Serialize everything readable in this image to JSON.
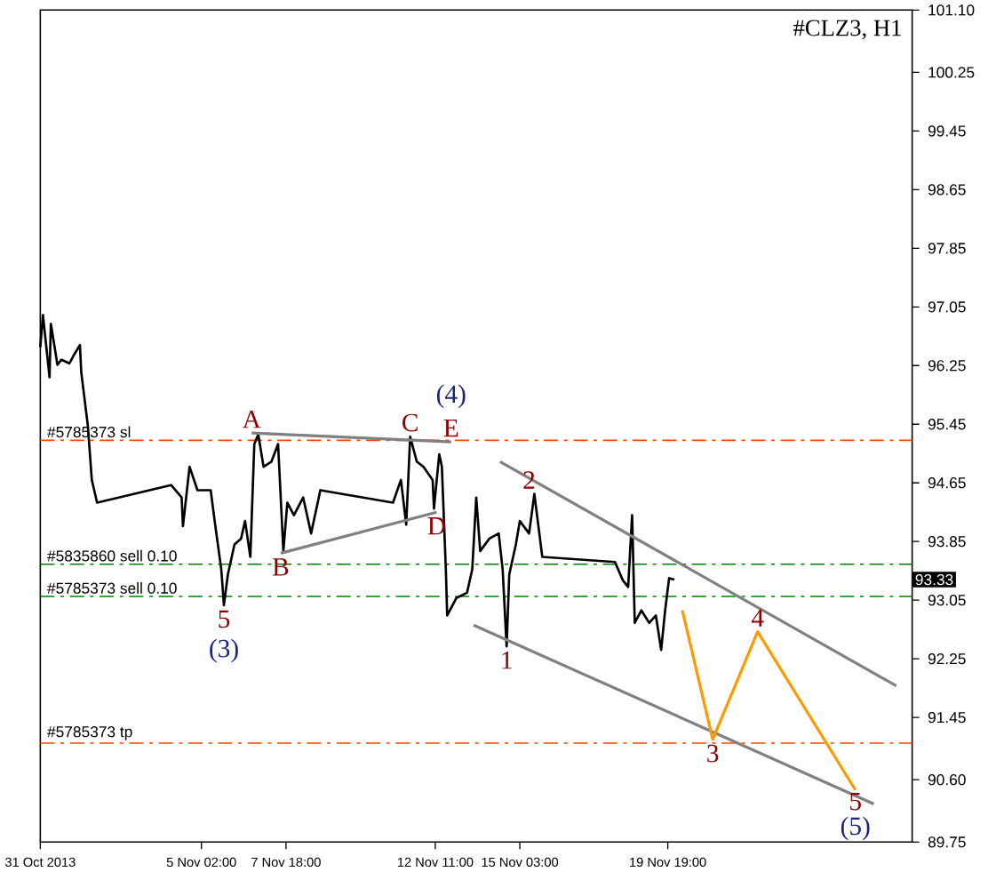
{
  "chart_data": {
    "type": "line",
    "title": "#CLZ3, H1",
    "xlim": [
      "2013-10-31T00:00",
      "2013-11-27T12:00"
    ],
    "ylim": [
      89.75,
      101.1
    ],
    "xticks": [
      {
        "value": "2013-10-31T00:00",
        "label": "31 Oct 2013"
      },
      {
        "value": "2013-11-05T02:00",
        "label": "5 Nov 02:00"
      },
      {
        "value": "2013-11-07T18:00",
        "label": "7 Nov 18:00"
      },
      {
        "value": "2013-11-12T11:00",
        "label": "12 Nov 11:00"
      },
      {
        "value": "2013-11-15T03:00",
        "label": "15 Nov 03:00"
      },
      {
        "value": "2013-11-19T19:00",
        "label": "19 Nov 19:00"
      }
    ],
    "yticks": [
      {
        "value": 89.75,
        "label": "89.75"
      },
      {
        "value": 90.6,
        "label": "90.60"
      },
      91.45,
      92.25,
      93.05,
      93.85,
      94.65,
      95.45,
      96.25,
      97.05,
      97.85,
      98.65,
      99.45,
      100.25,
      {
        "value": 101.1,
        "label": "101.10"
      }
    ],
    "grid": false,
    "marker": "none",
    "series": [
      {
        "color": "#000000",
        "line_style": "solid",
        "x": [
          "2013-10-31T00:00",
          "2013-10-31T02:00",
          "2013-10-31T07:00",
          "2013-10-31T08:00",
          "2013-10-31T13:00",
          "2013-10-31T16:00",
          "2013-10-31T22:00",
          "2013-11-01T01:00",
          "2013-11-01T06:00",
          "2013-11-01T07:00",
          "2013-11-01T12:00",
          "2013-11-01T15:00",
          "2013-11-01T19:00",
          "2013-11-04T03:00",
          "2013-11-04T11:00",
          "2013-11-04T12:00",
          "2013-11-04T17:00",
          "2013-11-04T23:00",
          "2013-11-05T09:00",
          "2013-11-05T12:00",
          "2013-11-05T17:00",
          "2013-11-05T19:00",
          "2013-11-05T22:00",
          "2013-11-06T03:00",
          "2013-11-06T08:00",
          "2013-11-06T11:00",
          "2013-11-06T15:00",
          "2013-11-06T18:00",
          "2013-11-06T21:00",
          "2013-11-07T01:00",
          "2013-11-07T07:00",
          "2013-11-07T12:00",
          "2013-11-07T16:00",
          "2013-11-07T19:00",
          "2013-11-08T00:00",
          "2013-11-08T07:00",
          "2013-11-08T13:00",
          "2013-11-08T20:00",
          "2013-11-11T03:00",
          "2013-11-11T09:00",
          "2013-11-11T13:00",
          "2013-11-11T16:00",
          "2013-11-11T21:00",
          "2013-11-12T02:00",
          "2013-11-12T09:00",
          "2013-11-12T10:00",
          "2013-11-12T14:00",
          "2013-11-12T16:00",
          "2013-11-12T19:00",
          "2013-11-12T20:00",
          "2013-11-13T03:00",
          "2013-11-13T11:00",
          "2013-11-13T15:00",
          "2013-11-13T18:00",
          "2013-11-13T21:00",
          "2013-11-14T04:00",
          "2013-11-14T11:00",
          "2013-11-14T14:00",
          "2013-11-14T17:00",
          "2013-11-14T19:00",
          "2013-11-15T00:00",
          "2013-11-15T03:00",
          "2013-11-15T10:00",
          "2013-11-15T14:00",
          "2013-11-15T20:00",
          "2013-11-18T03:00",
          "2013-11-18T09:00",
          "2013-11-18T13:00",
          "2013-11-18T16:00",
          "2013-11-18T18:00",
          "2013-11-18T23:00",
          "2013-11-19T05:00",
          "2013-11-19T10:00",
          "2013-11-19T14:00",
          "2013-11-19T17:00",
          "2013-11-19T20:00",
          "2013-11-20T00:00"
        ],
        "values": [
          96.5,
          96.94,
          96.09,
          96.82,
          96.26,
          96.33,
          96.28,
          96.38,
          96.53,
          96.16,
          95.43,
          94.69,
          94.38,
          94.62,
          94.45,
          94.06,
          94.87,
          94.55,
          94.55,
          94.13,
          93.47,
          92.98,
          93.4,
          93.81,
          93.89,
          94.13,
          93.64,
          95.18,
          95.31,
          94.87,
          94.94,
          95.18,
          93.72,
          94.38,
          94.21,
          94.45,
          93.96,
          94.55,
          94.38,
          94.69,
          94.08,
          95.28,
          94.94,
          94.87,
          94.69,
          94.3,
          95.04,
          94.87,
          93.47,
          92.84,
          93.08,
          93.15,
          93.47,
          94.45,
          93.72,
          93.89,
          93.96,
          93.47,
          92.42,
          93.4,
          93.81,
          94.13,
          93.96,
          94.5,
          93.64,
          93.57,
          93.32,
          93.23,
          94.21,
          92.74,
          92.91,
          92.74,
          92.84,
          92.37,
          92.91,
          93.35,
          93.33
        ]
      },
      {
        "color": "#808080",
        "line_style": "solid",
        "x": [
          "2013-11-06T16:00",
          "2013-11-12T23:00"
        ],
        "values": [
          95.33,
          95.21
        ]
      },
      {
        "color": "#808080",
        "line_style": "solid",
        "x": [
          "2013-11-07T14:00",
          "2013-11-12T12:00"
        ],
        "values": [
          93.69,
          94.25
        ]
      },
      {
        "color": "#808080",
        "line_style": "solid",
        "x": [
          "2013-11-14T12:00",
          "2013-11-27T00:00"
        ],
        "values": [
          94.94,
          91.88
        ]
      },
      {
        "color": "#808080",
        "line_style": "solid",
        "x": [
          "2013-11-13T16:00",
          "2013-11-26T07:00"
        ],
        "values": [
          92.71,
          90.27
        ]
      },
      {
        "color": "#ff9900",
        "line_style": "solid",
        "x": [
          "2013-11-20T06:00",
          "2013-11-21T05:00",
          "2013-11-22T15:00",
          "2013-11-25T17:00"
        ],
        "values": [
          92.91,
          91.15,
          92.62,
          90.46
        ]
      }
    ],
    "ref_lines": [
      {
        "axis": "y",
        "value": 95.23,
        "label": "#5785373 sl",
        "color": "#ff4500",
        "line_style": "dashdot"
      },
      {
        "axis": "y",
        "value": 93.54,
        "label": "#5835860 sell 0.10",
        "color": "#008000",
        "line_style": "dashdot"
      },
      {
        "axis": "y",
        "value": 93.1,
        "label": "#5785373 sell 0.10",
        "color": "#008000",
        "line_style": "dashdot"
      },
      {
        "axis": "y",
        "value": 91.1,
        "label": "#5785373 tp",
        "color": "#ff4500",
        "line_style": "dashdot"
      }
    ],
    "annotations": [
      {
        "text": "A",
        "x": "2013-11-06T16:00",
        "y": 95.33
      },
      {
        "text": "B",
        "x": "2013-11-07T14:00",
        "y": 93.69
      },
      {
        "text": "C",
        "x": "2013-11-11T16:00",
        "y": 95.28
      },
      {
        "text": "D",
        "x": "2013-11-12T12:00",
        "y": 94.25
      },
      {
        "text": "E",
        "x": "2013-11-12T23:00",
        "y": 95.21
      },
      {
        "text": "(4)",
        "x": "2013-11-12T23:00",
        "y": 95.21
      },
      {
        "text": "5",
        "x": "2013-11-05T19:00",
        "y": 92.98
      },
      {
        "text": "(3)",
        "x": "2013-11-05T19:00",
        "y": 92.98
      },
      {
        "text": "1",
        "x": "2013-11-14T17:00",
        "y": 92.42
      },
      {
        "text": "2",
        "x": "2013-11-15T10:00",
        "y": 94.5
      },
      {
        "text": "3",
        "x": "2013-11-21T05:00",
        "y": 91.15
      },
      {
        "text": "4",
        "x": "2013-11-22T15:00",
        "y": 92.62
      },
      {
        "text": "5",
        "x": "2013-11-25T17:00",
        "y": 90.46
      },
      {
        "text": "(5)",
        "x": "2013-11-25T17:00",
        "y": 90.46
      },
      {
        "text": "93.33",
        "y": 93.33
      }
    ]
  }
}
